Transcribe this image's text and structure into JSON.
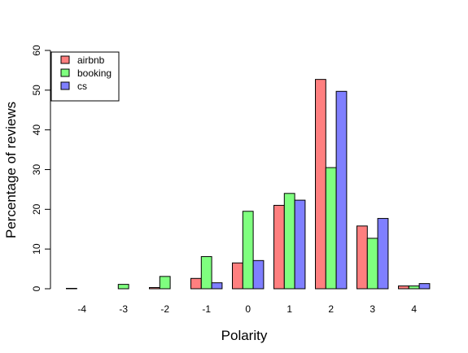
{
  "chart_data": {
    "type": "bar",
    "xlabel": "Polarity",
    "ylabel": "Percentage of reviews",
    "categories": [
      "-4",
      "-3",
      "-2",
      "-1",
      "0",
      "1",
      "2",
      "3",
      "4"
    ],
    "ylim": [
      0,
      60
    ],
    "yticks": [
      "0",
      "10",
      "20",
      "30",
      "40",
      "50",
      "60"
    ],
    "legend_position": "top-left",
    "series": [
      {
        "name": "airbnb",
        "color": "#ff7f7f",
        "values": [
          0.1,
          0.0,
          0.3,
          2.6,
          6.5,
          21.0,
          52.7,
          15.8,
          0.7
        ]
      },
      {
        "name": "booking",
        "color": "#7fff7f",
        "values": [
          0.0,
          1.1,
          3.1,
          8.1,
          19.5,
          24.0,
          30.5,
          12.7,
          0.7
        ]
      },
      {
        "name": "cs",
        "color": "#7f7fff",
        "values": [
          0.0,
          0.0,
          0.0,
          1.5,
          7.1,
          22.3,
          49.7,
          17.7,
          1.3
        ]
      }
    ]
  }
}
